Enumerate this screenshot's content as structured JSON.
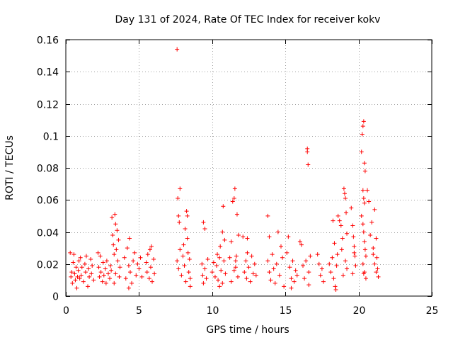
{
  "chart_data": {
    "type": "scatter",
    "title": "Day 131 of 2024, Rate Of TEC Index for receiver kokv",
    "xlabel": "GPS time / hours",
    "ylabel": "ROTI / TECUs",
    "xlim": [
      0,
      25
    ],
    "ylim": [
      0,
      0.16
    ],
    "xticks": [
      0,
      5,
      10,
      15,
      20,
      25
    ],
    "xtick_labels": [
      "0",
      "5",
      "10",
      "15",
      "20",
      "25"
    ],
    "yticks": [
      0,
      0.02,
      0.04,
      0.06,
      0.08,
      0.1,
      0.12,
      0.14,
      0.16
    ],
    "ytick_labels": [
      "0",
      "0.02",
      "0.04",
      "0.06",
      "0.08",
      "0.1",
      "0.12",
      "0.14",
      "0.16"
    ],
    "grid": true,
    "marker": "plus",
    "color": "#ff0000",
    "series": [
      {
        "name": "ROTI",
        "points": [
          [
            0.3,
            0.027
          ],
          [
            0.35,
            0.012
          ],
          [
            0.4,
            0.015
          ],
          [
            0.45,
            0.008
          ],
          [
            0.5,
            0.021
          ],
          [
            0.55,
            0.026
          ],
          [
            0.6,
            0.014
          ],
          [
            0.65,
            0.01
          ],
          [
            0.7,
            0.018
          ],
          [
            0.75,
            0.005
          ],
          [
            0.8,
            0.012
          ],
          [
            0.85,
            0.016
          ],
          [
            0.9,
            0.022
          ],
          [
            0.95,
            0.011
          ],
          [
            1.0,
            0.024
          ],
          [
            1.05,
            0.013
          ],
          [
            1.1,
            0.018
          ],
          [
            1.2,
            0.009
          ],
          [
            1.3,
            0.02
          ],
          [
            1.35,
            0.015
          ],
          [
            1.4,
            0.025
          ],
          [
            1.5,
            0.006
          ],
          [
            1.55,
            0.017
          ],
          [
            1.6,
            0.012
          ],
          [
            1.7,
            0.023
          ],
          [
            1.75,
            0.014
          ],
          [
            1.8,
            0.019
          ],
          [
            1.9,
            0.01
          ],
          [
            2.2,
            0.027
          ],
          [
            2.25,
            0.018
          ],
          [
            2.3,
            0.012
          ],
          [
            2.35,
            0.025
          ],
          [
            2.4,
            0.015
          ],
          [
            2.5,
            0.009
          ],
          [
            2.55,
            0.021
          ],
          [
            2.6,
            0.013
          ],
          [
            2.7,
            0.017
          ],
          [
            2.75,
            0.008
          ],
          [
            2.8,
            0.022
          ],
          [
            2.9,
            0.014
          ],
          [
            3.0,
            0.011
          ],
          [
            3.05,
            0.019
          ],
          [
            3.1,
            0.016
          ],
          [
            3.15,
            0.049
          ],
          [
            3.2,
            0.038
          ],
          [
            3.25,
            0.032
          ],
          [
            3.3,
            0.026
          ],
          [
            3.35,
            0.051
          ],
          [
            3.4,
            0.045
          ],
          [
            3.45,
            0.029
          ],
          [
            3.5,
            0.041
          ],
          [
            3.55,
            0.022
          ],
          [
            3.6,
            0.035
          ],
          [
            3.65,
            0.012
          ],
          [
            3.7,
            0.018
          ],
          [
            3.3,
            0.008
          ],
          [
            3.4,
            0.014
          ],
          [
            4.0,
            0.024
          ],
          [
            4.1,
            0.011
          ],
          [
            4.2,
            0.03
          ],
          [
            4.3,
            0.019
          ],
          [
            4.35,
            0.036
          ],
          [
            4.4,
            0.015
          ],
          [
            4.5,
            0.008
          ],
          [
            4.6,
            0.022
          ],
          [
            4.7,
            0.027
          ],
          [
            4.8,
            0.013
          ],
          [
            4.9,
            0.02
          ],
          [
            5.0,
            0.017
          ],
          [
            5.1,
            0.024
          ],
          [
            5.2,
            0.012
          ],
          [
            4.3,
            0.005
          ],
          [
            5.5,
            0.021
          ],
          [
            5.55,
            0.015
          ],
          [
            5.6,
            0.026
          ],
          [
            5.7,
            0.011
          ],
          [
            5.75,
            0.029
          ],
          [
            5.8,
            0.018
          ],
          [
            5.85,
            0.031
          ],
          [
            5.9,
            0.009
          ],
          [
            6.0,
            0.023
          ],
          [
            6.05,
            0.014
          ],
          [
            7.6,
            0.154
          ],
          [
            7.65,
            0.061
          ],
          [
            7.7,
            0.05
          ],
          [
            7.75,
            0.046
          ],
          [
            7.8,
            0.067
          ],
          [
            7.6,
            0.022
          ],
          [
            7.7,
            0.017
          ],
          [
            7.8,
            0.029
          ],
          [
            7.9,
            0.013
          ],
          [
            8.0,
            0.025
          ],
          [
            8.05,
            0.032
          ],
          [
            8.1,
            0.019
          ],
          [
            8.2,
            0.009
          ],
          [
            8.25,
            0.053
          ],
          [
            8.3,
            0.036
          ],
          [
            8.35,
            0.027
          ],
          [
            8.4,
            0.015
          ],
          [
            8.45,
            0.023
          ],
          [
            8.5,
            0.011
          ],
          [
            8.5,
            0.006
          ],
          [
            8.15,
            0.042
          ],
          [
            8.3,
            0.05
          ],
          [
            9.4,
            0.046
          ],
          [
            9.5,
            0.042
          ],
          [
            9.3,
            0.02
          ],
          [
            9.35,
            0.013
          ],
          [
            9.4,
            0.008
          ],
          [
            9.5,
            0.017
          ],
          [
            9.6,
            0.011
          ],
          [
            9.7,
            0.023
          ],
          [
            10.0,
            0.015
          ],
          [
            10.1,
            0.021
          ],
          [
            10.2,
            0.012
          ],
          [
            10.3,
            0.019
          ],
          [
            10.35,
            0.026
          ],
          [
            10.4,
            0.01
          ],
          [
            10.5,
            0.024
          ],
          [
            10.55,
            0.031
          ],
          [
            10.6,
            0.016
          ],
          [
            10.7,
            0.04
          ],
          [
            10.75,
            0.056
          ],
          [
            10.8,
            0.022
          ],
          [
            10.85,
            0.035
          ],
          [
            10.9,
            0.014
          ],
          [
            10.5,
            0.006
          ],
          [
            10.7,
            0.008
          ],
          [
            11.2,
            0.024
          ],
          [
            11.3,
            0.034
          ],
          [
            11.4,
            0.059
          ],
          [
            11.5,
            0.061
          ],
          [
            11.55,
            0.067
          ],
          [
            11.6,
            0.018
          ],
          [
            11.65,
            0.025
          ],
          [
            11.7,
            0.051
          ],
          [
            11.75,
            0.012
          ],
          [
            11.8,
            0.038
          ],
          [
            11.3,
            0.009
          ],
          [
            11.5,
            0.016
          ],
          [
            11.6,
            0.022
          ],
          [
            12.1,
            0.037
          ],
          [
            12.2,
            0.015
          ],
          [
            12.3,
            0.022
          ],
          [
            12.35,
            0.011
          ],
          [
            12.4,
            0.027
          ],
          [
            12.5,
            0.018
          ],
          [
            12.6,
            0.009
          ],
          [
            12.7,
            0.025
          ],
          [
            12.8,
            0.014
          ],
          [
            12.9,
            0.02
          ],
          [
            13.0,
            0.013
          ],
          [
            12.4,
            0.036
          ],
          [
            13.8,
            0.05
          ],
          [
            13.9,
            0.037
          ],
          [
            13.8,
            0.022
          ],
          [
            13.9,
            0.015
          ],
          [
            14.0,
            0.01
          ],
          [
            14.1,
            0.026
          ],
          [
            14.2,
            0.017
          ],
          [
            14.3,
            0.008
          ],
          [
            14.4,
            0.02
          ],
          [
            14.5,
            0.04
          ],
          [
            14.6,
            0.013
          ],
          [
            14.7,
            0.031
          ],
          [
            14.8,
            0.024
          ],
          [
            14.9,
            0.006
          ],
          [
            15.1,
            0.027
          ],
          [
            15.2,
            0.037
          ],
          [
            15.3,
            0.018
          ],
          [
            15.4,
            0.011
          ],
          [
            15.5,
            0.022
          ],
          [
            15.6,
            0.009
          ],
          [
            15.7,
            0.016
          ],
          [
            15.8,
            0.013
          ],
          [
            15.4,
            0.005
          ],
          [
            16.0,
            0.034
          ],
          [
            16.1,
            0.032
          ],
          [
            16.2,
            0.019
          ],
          [
            16.3,
            0.011
          ],
          [
            16.4,
            0.022
          ],
          [
            16.5,
            0.092
          ],
          [
            16.5,
            0.09
          ],
          [
            16.55,
            0.082
          ],
          [
            16.6,
            0.015
          ],
          [
            16.7,
            0.025
          ],
          [
            16.6,
            0.007
          ],
          [
            17.2,
            0.026
          ],
          [
            17.3,
            0.02
          ],
          [
            17.4,
            0.013
          ],
          [
            17.5,
            0.017
          ],
          [
            17.6,
            0.009
          ],
          [
            18.0,
            0.02
          ],
          [
            18.1,
            0.015
          ],
          [
            18.2,
            0.024
          ],
          [
            18.25,
            0.047
          ],
          [
            18.3,
            0.011
          ],
          [
            18.35,
            0.033
          ],
          [
            18.4,
            0.006
          ],
          [
            18.45,
            0.004
          ],
          [
            18.5,
            0.019
          ],
          [
            18.55,
            0.026
          ],
          [
            18.6,
            0.05
          ],
          [
            18.7,
            0.047
          ],
          [
            18.8,
            0.044
          ],
          [
            18.85,
            0.029
          ],
          [
            18.9,
            0.036
          ],
          [
            19.0,
            0.067
          ],
          [
            19.05,
            0.064
          ],
          [
            19.1,
            0.061
          ],
          [
            19.15,
            0.052
          ],
          [
            19.2,
            0.039
          ],
          [
            18.95,
            0.013
          ],
          [
            19.1,
            0.022
          ],
          [
            19.2,
            0.017
          ],
          [
            19.5,
            0.055
          ],
          [
            19.6,
            0.044
          ],
          [
            19.65,
            0.037
          ],
          [
            19.7,
            0.031
          ],
          [
            19.75,
            0.025
          ],
          [
            19.8,
            0.019
          ],
          [
            19.6,
            0.014
          ],
          [
            19.7,
            0.027
          ],
          [
            20.2,
            0.09
          ],
          [
            20.25,
            0.101
          ],
          [
            20.3,
            0.106
          ],
          [
            20.35,
            0.109
          ],
          [
            20.4,
            0.083
          ],
          [
            20.45,
            0.078
          ],
          [
            20.3,
            0.066
          ],
          [
            20.35,
            0.061
          ],
          [
            20.4,
            0.058
          ],
          [
            20.2,
            0.05
          ],
          [
            20.3,
            0.045
          ],
          [
            20.35,
            0.04
          ],
          [
            20.4,
            0.034
          ],
          [
            20.45,
            0.029
          ],
          [
            20.5,
            0.025
          ],
          [
            20.3,
            0.02
          ],
          [
            20.4,
            0.015
          ],
          [
            20.5,
            0.011
          ],
          [
            20.35,
            0.014
          ],
          [
            20.6,
            0.066
          ],
          [
            20.7,
            0.059
          ],
          [
            20.8,
            0.038
          ],
          [
            20.9,
            0.046
          ],
          [
            21.0,
            0.03
          ],
          [
            21.1,
            0.054
          ],
          [
            21.2,
            0.036
          ],
          [
            21.25,
            0.024
          ],
          [
            21.3,
            0.017
          ],
          [
            21.35,
            0.012
          ],
          [
            21.1,
            0.02
          ],
          [
            21.0,
            0.026
          ],
          [
            21.2,
            0.015
          ]
        ]
      }
    ]
  }
}
